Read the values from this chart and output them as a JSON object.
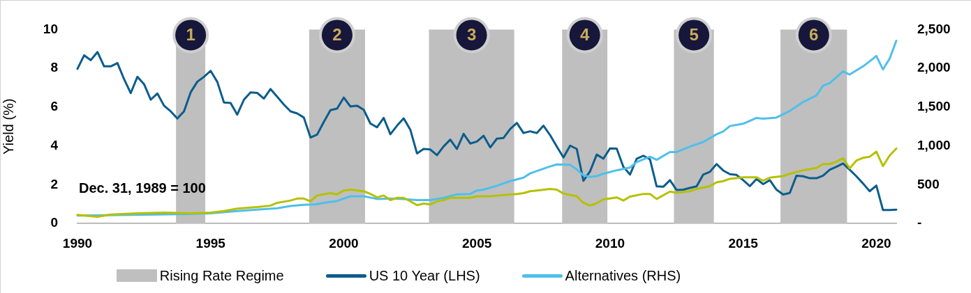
{
  "chart_data": {
    "type": "line",
    "ylabel": "Yield (%)",
    "x": [
      1990.0,
      1990.25,
      1990.5,
      1990.75,
      1991.0,
      1991.25,
      1991.5,
      1991.75,
      1992.0,
      1992.25,
      1992.5,
      1992.75,
      1993.0,
      1993.25,
      1993.5,
      1993.75,
      1994.0,
      1994.25,
      1994.5,
      1994.75,
      1995.0,
      1995.25,
      1995.5,
      1995.75,
      1996.0,
      1996.25,
      1996.5,
      1996.75,
      1997.0,
      1997.25,
      1997.5,
      1997.75,
      1998.0,
      1998.25,
      1998.5,
      1998.75,
      1999.0,
      1999.25,
      1999.5,
      1999.75,
      2000.0,
      2000.25,
      2000.5,
      2000.75,
      2001.0,
      2001.25,
      2001.5,
      2001.75,
      2002.0,
      2002.25,
      2002.5,
      2002.75,
      2003.0,
      2003.25,
      2003.5,
      2003.75,
      2004.0,
      2004.25,
      2004.5,
      2004.75,
      2005.0,
      2005.25,
      2005.5,
      2005.75,
      2006.0,
      2006.25,
      2006.5,
      2006.75,
      2007.0,
      2007.25,
      2007.5,
      2007.75,
      2008.0,
      2008.25,
      2008.5,
      2008.75,
      2009.0,
      2009.25,
      2009.5,
      2009.75,
      2010.0,
      2010.25,
      2010.5,
      2010.75,
      2011.0,
      2011.25,
      2011.5,
      2011.75,
      2012.0,
      2012.25,
      2012.5,
      2012.75,
      2013.0,
      2013.25,
      2013.5,
      2013.75,
      2014.0,
      2014.25,
      2014.5,
      2014.75,
      2015.0,
      2015.25,
      2015.5,
      2015.75,
      2016.0,
      2016.25,
      2016.5,
      2016.75,
      2017.0,
      2017.25,
      2017.5,
      2017.75,
      2018.0,
      2018.25,
      2018.5,
      2018.75,
      2019.0,
      2019.25,
      2019.5,
      2019.75,
      2020.0,
      2020.25,
      2020.5,
      2020.75
    ],
    "series": [
      {
        "name": "US 10 Year (LHS)",
        "color": "#0b5d8c",
        "values": [
          7.97,
          8.67,
          8.42,
          8.84,
          8.1,
          8.1,
          8.27,
          7.44,
          6.72,
          7.56,
          7.18,
          6.38,
          6.7,
          6.07,
          5.78,
          5.41,
          5.78,
          6.76,
          7.31,
          7.56,
          7.87,
          7.3,
          6.24,
          6.21,
          5.61,
          6.38,
          6.76,
          6.73,
          6.44,
          6.93,
          6.53,
          6.13,
          5.78,
          5.67,
          5.46,
          4.43,
          4.58,
          5.23,
          5.84,
          5.92,
          6.49,
          6.03,
          6.07,
          5.86,
          5.15,
          4.96,
          5.44,
          4.6,
          5.04,
          5.42,
          4.83,
          3.61,
          3.84,
          3.81,
          3.52,
          3.97,
          4.32,
          3.84,
          4.62,
          4.12,
          4.22,
          4.52,
          3.92,
          4.37,
          4.41,
          4.87,
          5.18,
          4.66,
          4.75,
          4.66,
          5.04,
          4.55,
          3.97,
          3.4,
          4.01,
          3.84,
          2.2,
          2.69,
          3.55,
          3.34,
          3.87,
          3.86,
          2.92,
          2.52,
          3.33,
          3.49,
          3.3,
          1.91,
          1.89,
          2.23,
          1.72,
          1.74,
          1.83,
          1.91,
          2.52,
          2.66,
          3.06,
          2.73,
          2.54,
          2.5,
          2.23,
          1.92,
          2.29,
          2.03,
          2.23,
          1.74,
          1.49,
          1.57,
          2.46,
          2.43,
          2.33,
          2.33,
          2.46,
          2.77,
          2.92,
          3.09,
          2.77,
          2.43,
          2.06,
          1.66,
          1.95,
          0.69,
          0.69,
          0.71
        ]
      },
      {
        "name": "Alternatives (RHS)",
        "color": "#4fbfea",
        "axis": "y2",
        "x": [
          1990,
          1991,
          1992,
          1993,
          1994,
          1995,
          1996,
          1997,
          1997.5,
          1998,
          1998.5,
          1998.92,
          1999.25,
          1999.75,
          2000.25,
          2000.75,
          2001.25,
          2001.75,
          2002.25,
          2002.75,
          2003.25,
          2003.75,
          2004.25,
          2004.75,
          2005.0,
          2005.25,
          2005.75,
          2006.25,
          2006.75,
          2007.0,
          2007.5,
          2007.75,
          2008.0,
          2008.5,
          2008.75,
          2009.0,
          2009.25,
          2009.5,
          2009.75,
          2010.25,
          2010.75,
          2011.0,
          2011.5,
          2011.75,
          2012.25,
          2012.5,
          2013.0,
          2013.5,
          2014.0,
          2014.25,
          2014.5,
          2015.0,
          2015.5,
          2015.75,
          2016.25,
          2016.75,
          2017.25,
          2017.75,
          2018.0,
          2018.25,
          2018.75,
          2019.0,
          2019.5,
          2019.75,
          2020.0,
          2020.25,
          2020.5,
          2020.75
        ],
        "values": [
          100,
          105,
          110,
          115,
          120,
          130,
          160,
          185,
          195,
          225,
          240,
          245,
          265,
          290,
          350,
          350,
          315,
          320,
          315,
          300,
          300,
          330,
          375,
          380,
          425,
          435,
          485,
          545,
          590,
          645,
          705,
          735,
          760,
          755,
          695,
          620,
          600,
          610,
          640,
          685,
          720,
          790,
          860,
          820,
          920,
          920,
          990,
          1050,
          1150,
          1185,
          1255,
          1285,
          1360,
          1350,
          1365,
          1450,
          1565,
          1650,
          1775,
          1810,
          1960,
          1920,
          2025,
          2090,
          2160,
          1985,
          2125,
          2355
        ]
      },
      {
        "color": "#b5c100",
        "axis": "y2",
        "x": [
          1990,
          1990.75,
          1991.25,
          1992.25,
          1993.25,
          1994.25,
          1995,
          1995.5,
          1996,
          1996.75,
          1997.25,
          1997.5,
          1998,
          1998.25,
          1998.5,
          1998.75,
          1999,
          1999.5,
          1999.75,
          2000,
          2000.25,
          2000.75,
          2001,
          2001.25,
          2001.5,
          2001.75,
          2002,
          2002.25,
          2002.5,
          2002.75,
          2003,
          2003.25,
          2003.5,
          2003.75,
          2004,
          2004.75,
          2005,
          2005.5,
          2006,
          2006.5,
          2006.75,
          2007,
          2007.25,
          2007.75,
          2008,
          2008.25,
          2008.75,
          2009,
          2009.25,
          2009.5,
          2009.75,
          2010.25,
          2010.5,
          2010.75,
          2011.25,
          2011.5,
          2011.75,
          2012.25,
          2012.5,
          2013,
          2013.25,
          2013.75,
          2014,
          2014.25,
          2014.5,
          2015,
          2015.5,
          2015.75,
          2016,
          2016.5,
          2016.75,
          2017.25,
          2017.75,
          2018,
          2018.25,
          2018.5,
          2018.75,
          2019,
          2019.25,
          2019.5,
          2019.75,
          2020,
          2020.25,
          2020.5,
          2020.75
        ],
        "values": [
          110,
          85,
          115,
          130,
          140,
          130,
          140,
          160,
          190,
          210,
          230,
          265,
          295,
          320,
          320,
          285,
          360,
          390,
          375,
          425,
          435,
          415,
          380,
          335,
          360,
          300,
          330,
          330,
          285,
          235,
          255,
          245,
          285,
          300,
          330,
          330,
          350,
          350,
          365,
          380,
          390,
          415,
          425,
          445,
          435,
          385,
          350,
          265,
          230,
          260,
          310,
          335,
          295,
          345,
          380,
          380,
          315,
          410,
          395,
          415,
          445,
          480,
          530,
          545,
          575,
          595,
          595,
          550,
          590,
          610,
          640,
          685,
          715,
          765,
          765,
          795,
          840,
          710,
          810,
          845,
          860,
          925,
          740,
          875,
          965
        ]
      }
    ],
    "xlim": [
      1990,
      2020.75
    ],
    "xticks": [
      1990,
      1995,
      2000,
      2005,
      2010,
      2015,
      2020
    ],
    "ylim": [
      0,
      10
    ],
    "yticks": [
      0,
      2,
      4,
      6,
      8,
      10
    ],
    "y2lim": [
      0,
      2500
    ],
    "y2ticks": [
      {
        "value": 0,
        "label": "-"
      },
      500,
      {
        "value": 1000,
        "label": "1,000"
      },
      {
        "value": 1500,
        "label": "1,500"
      },
      {
        "value": 2000,
        "label": "2,000"
      },
      {
        "value": 2500,
        "label": "2,500"
      }
    ],
    "bands": [
      {
        "axis": "x",
        "from": 1993.7,
        "to": 1994.8,
        "label": "1",
        "color": "#bfbfbf"
      },
      {
        "axis": "x",
        "from": 1998.7,
        "to": 2000.8,
        "label": "2",
        "color": "#bfbfbf"
      },
      {
        "axis": "x",
        "from": 2003.2,
        "to": 2006.4,
        "label": "3",
        "color": "#bfbfbf"
      },
      {
        "axis": "x",
        "from": 2008.2,
        "to": 2009.9,
        "label": "4",
        "color": "#bfbfbf"
      },
      {
        "axis": "x",
        "from": 2012.4,
        "to": 2013.9,
        "label": "5",
        "color": "#bfbfbf"
      },
      {
        "axis": "x",
        "from": 2016.4,
        "to": 2018.9,
        "label": "6",
        "color": "#bfbfbf"
      }
    ],
    "annotations": [
      "Dec. 31, 1989 = 100",
      "Rising Rate Regime"
    ],
    "marker": "none",
    "legend": "bottom"
  }
}
